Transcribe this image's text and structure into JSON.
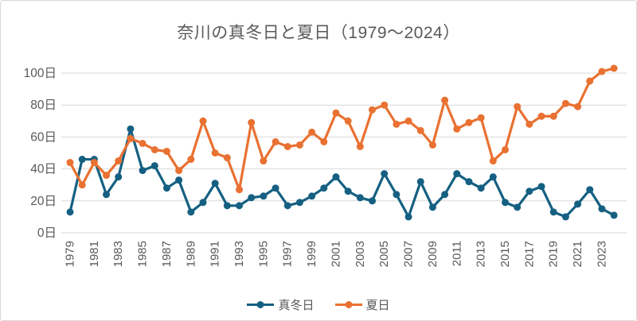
{
  "window": {
    "background": "#FFFFFF",
    "border_color": "#D9D9D9"
  },
  "chart_data": {
    "type": "line",
    "title": "奈川の真冬日と夏日（1979～2024）",
    "title_color": "#595959",
    "x": [
      1979,
      1980,
      1981,
      1982,
      1983,
      1984,
      1985,
      1986,
      1987,
      1988,
      1989,
      1990,
      1991,
      1992,
      1993,
      1994,
      1995,
      1996,
      1997,
      1998,
      1999,
      2000,
      2001,
      2002,
      2003,
      2004,
      2005,
      2006,
      2007,
      2008,
      2009,
      2010,
      2011,
      2012,
      2013,
      2014,
      2015,
      2016,
      2017,
      2018,
      2019,
      2020,
      2021,
      2022,
      2023,
      2024
    ],
    "x_tick_labels": [
      "1979",
      "1981",
      "1983",
      "1985",
      "1987",
      "1989",
      "1991",
      "1993",
      "1995",
      "1997",
      "1999",
      "2001",
      "2003",
      "2005",
      "2007",
      "2009",
      "2011",
      "2013",
      "2015",
      "2017",
      "2019",
      "2021",
      "2023"
    ],
    "series": [
      {
        "name": "真冬日",
        "color": "#156082",
        "values": [
          13,
          46,
          46,
          24,
          35,
          65,
          39,
          42,
          28,
          33,
          13,
          19,
          31,
          17,
          17,
          22,
          23,
          28,
          17,
          19,
          23,
          28,
          35,
          26,
          22,
          20,
          37,
          24,
          10,
          32,
          16,
          24,
          37,
          32,
          28,
          35,
          19,
          16,
          26,
          29,
          13,
          10,
          18,
          27,
          15,
          11
        ]
      },
      {
        "name": "夏日",
        "color": "#E97132",
        "values": [
          44,
          30,
          44,
          36,
          45,
          59,
          56,
          52,
          51,
          39,
          46,
          70,
          50,
          47,
          27,
          69,
          45,
          57,
          54,
          55,
          63,
          57,
          75,
          70,
          54,
          77,
          80,
          68,
          70,
          64,
          55,
          83,
          65,
          69,
          72,
          45,
          52,
          79,
          68,
          73,
          73,
          81,
          79,
          95,
          101,
          103
        ]
      }
    ],
    "y_axis": {
      "min": 0,
      "max": 100,
      "tick_step": 20,
      "tick_values": [
        0,
        20,
        40,
        60,
        80,
        100
      ],
      "tick_labels": [
        "0日",
        "20日",
        "40日",
        "60日",
        "80日",
        "100日"
      ],
      "label_color": "#595959"
    },
    "grid": true,
    "gridline_color": "#D9D9D9",
    "axis_label_color": "#595959",
    "legend_position": "bottom"
  }
}
